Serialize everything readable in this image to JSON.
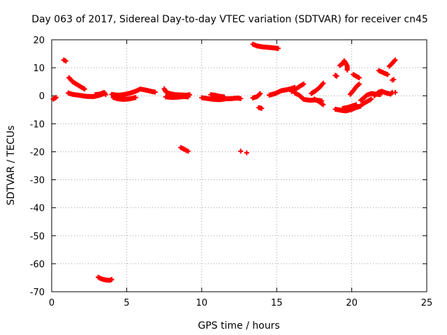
{
  "chart_data": {
    "type": "scatter",
    "title": "Day 063 of 2017, Sidereal Day-to-day VTEC variation (SDTVAR) for receiver cn45",
    "xlabel": "GPS time / hours",
    "ylabel": "SDTVAR / TECUs",
    "xlim": [
      0,
      25
    ],
    "ylim": [
      -70,
      20
    ],
    "xticks": [
      0,
      5,
      10,
      15,
      20,
      25
    ],
    "yticks": [
      -70,
      -60,
      -50,
      -40,
      -30,
      -20,
      -10,
      0,
      10,
      20
    ],
    "grid": true,
    "legend": "none",
    "marker": "plus",
    "color": "#ff0000",
    "tracks": [
      {
        "points": [
          [
            0.1,
            -1.2
          ],
          [
            0.3,
            -0.6
          ]
        ]
      },
      {
        "points": [
          [
            0.8,
            12.8
          ],
          [
            0.95,
            12.4
          ]
        ]
      },
      {
        "points": [
          [
            1.15,
            6.5
          ],
          [
            1.4,
            5.0
          ],
          [
            1.7,
            4.0
          ],
          [
            2.0,
            3.0
          ],
          [
            2.2,
            2.4
          ]
        ]
      },
      {
        "points": [
          [
            1.1,
            1.0
          ],
          [
            1.4,
            0.5
          ],
          [
            1.8,
            0.2
          ],
          [
            2.3,
            -0.2
          ],
          [
            2.8,
            -0.3
          ],
          [
            3.2,
            0.2
          ],
          [
            3.5,
            0.8
          ]
        ]
      },
      {
        "points": [
          [
            2.9,
            0.4
          ],
          [
            3.2,
            0.6
          ],
          [
            3.5,
            1.2
          ],
          [
            3.6,
            0.4
          ]
        ]
      },
      {
        "points": [
          [
            3.1,
            -64.8
          ],
          [
            3.3,
            -65.4
          ],
          [
            3.6,
            -65.8
          ],
          [
            3.9,
            -65.9
          ],
          [
            4.0,
            -65.6
          ]
        ]
      },
      {
        "points": [
          [
            4.1,
            -0.6
          ],
          [
            4.4,
            -1.1
          ],
          [
            4.8,
            -1.3
          ],
          [
            5.2,
            -1.1
          ],
          [
            5.6,
            -0.6
          ]
        ]
      },
      {
        "points": [
          [
            4.0,
            0.5
          ],
          [
            4.4,
            0.2
          ],
          [
            4.8,
            0.4
          ],
          [
            5.2,
            0.9
          ],
          [
            5.6,
            1.6
          ],
          [
            5.9,
            2.4
          ],
          [
            6.3,
            2.0
          ],
          [
            6.7,
            1.5
          ],
          [
            6.9,
            1.3
          ]
        ]
      },
      {
        "points": [
          [
            7.5,
            2.5
          ],
          [
            7.6,
            1.5
          ],
          [
            7.8,
            0.9
          ],
          [
            8.2,
            0.4
          ],
          [
            8.6,
            0.3
          ],
          [
            9.0,
            0.2
          ],
          [
            9.2,
            0.4
          ]
        ]
      },
      {
        "points": [
          [
            7.6,
            -0.4
          ],
          [
            8.0,
            -0.6
          ],
          [
            8.4,
            -0.5
          ],
          [
            8.8,
            -0.3
          ],
          [
            9.1,
            -0.4
          ]
        ]
      },
      {
        "points": [
          [
            8.6,
            -18.5
          ],
          [
            8.8,
            -19.0
          ],
          [
            9.0,
            -19.6
          ],
          [
            9.1,
            -19.8
          ]
        ]
      },
      {
        "points": [
          [
            10.0,
            -0.7
          ],
          [
            10.4,
            -1.0
          ],
          [
            10.8,
            -1.3
          ],
          [
            11.2,
            -1.4
          ],
          [
            11.6,
            -1.1
          ],
          [
            12.0,
            -1.0
          ],
          [
            12.4,
            -0.8
          ],
          [
            12.6,
            -1.0
          ]
        ]
      },
      {
        "points": [
          [
            10.6,
            0.4
          ],
          [
            10.9,
            0.2
          ],
          [
            11.2,
            -0.2
          ],
          [
            11.5,
            -0.4
          ]
        ]
      },
      {
        "points": [
          [
            12.6,
            -19.8
          ]
        ]
      },
      {
        "points": [
          [
            13.0,
            -20.4
          ]
        ]
      },
      {
        "points": [
          [
            13.4,
            18.4
          ],
          [
            13.7,
            17.8
          ],
          [
            14.0,
            17.5
          ],
          [
            14.4,
            17.3
          ],
          [
            14.8,
            17.1
          ],
          [
            15.1,
            16.9
          ]
        ]
      },
      {
        "points": [
          [
            13.4,
            -0.8
          ],
          [
            13.7,
            -0.3
          ],
          [
            13.9,
            0.8
          ]
        ]
      },
      {
        "points": [
          [
            13.8,
            -4.2
          ],
          [
            14.0,
            -4.5
          ]
        ]
      },
      {
        "points": [
          [
            14.5,
            0.2
          ],
          [
            14.9,
            0.8
          ],
          [
            15.3,
            1.8
          ],
          [
            15.7,
            2.2
          ],
          [
            16.0,
            2.6
          ],
          [
            16.2,
            3.0
          ]
        ]
      },
      {
        "points": [
          [
            16.0,
            1.5
          ],
          [
            16.3,
            2.5
          ],
          [
            16.6,
            3.6
          ],
          [
            16.8,
            4.2
          ]
        ]
      },
      {
        "points": [
          [
            16.2,
            1.0
          ],
          [
            16.5,
            0.2
          ],
          [
            16.8,
            -1.3
          ],
          [
            17.2,
            -1.6
          ],
          [
            17.6,
            -1.5
          ],
          [
            18.0,
            -1.8
          ]
        ]
      },
      {
        "points": [
          [
            17.3,
            0.8
          ],
          [
            17.6,
            1.8
          ],
          [
            17.9,
            3.2
          ],
          [
            18.1,
            4.5
          ]
        ]
      },
      {
        "points": [
          [
            17.5,
            -1.2
          ],
          [
            17.8,
            -2.0
          ],
          [
            18.1,
            -3.2
          ]
        ]
      },
      {
        "points": [
          [
            18.9,
            7.3
          ],
          [
            19.0,
            7.0
          ]
        ]
      },
      {
        "points": [
          [
            19.2,
            10.8
          ],
          [
            19.4,
            11.5
          ],
          [
            19.5,
            12.5
          ],
          [
            19.6,
            11.6
          ],
          [
            19.7,
            10.6
          ],
          [
            19.7,
            9.2
          ]
        ]
      },
      {
        "points": [
          [
            18.9,
            -4.8
          ],
          [
            19.3,
            -5.2
          ],
          [
            19.6,
            -5.4
          ],
          [
            20.0,
            -4.9
          ],
          [
            20.3,
            -4.2
          ],
          [
            20.6,
            -3.7
          ]
        ]
      },
      {
        "points": [
          [
            19.4,
            -4.5
          ],
          [
            19.7,
            -4.2
          ],
          [
            20.0,
            -3.7
          ],
          [
            20.3,
            -3.2
          ]
        ]
      },
      {
        "points": [
          [
            19.9,
            0.5
          ],
          [
            20.1,
            1.8
          ],
          [
            20.3,
            3.2
          ],
          [
            20.5,
            4.2
          ]
        ]
      },
      {
        "points": [
          [
            20.1,
            7.6
          ],
          [
            20.3,
            7.0
          ],
          [
            20.5,
            6.4
          ]
        ]
      },
      {
        "points": [
          [
            20.6,
            -1.6
          ],
          [
            20.8,
            -0.8
          ],
          [
            21.0,
            0.2
          ],
          [
            21.3,
            0.8
          ],
          [
            21.6,
            0.6
          ],
          [
            21.9,
            0.4
          ]
        ]
      },
      {
        "points": [
          [
            20.7,
            -3.0
          ],
          [
            20.9,
            -2.4
          ],
          [
            21.1,
            -1.8
          ],
          [
            21.3,
            -1.2
          ]
        ]
      },
      {
        "points": [
          [
            21.5,
            0.0
          ],
          [
            21.8,
            1.3
          ],
          [
            22.0,
            1.6
          ],
          [
            22.3,
            1.0
          ],
          [
            22.6,
            0.6
          ],
          [
            22.7,
            1.2
          ]
        ]
      },
      {
        "points": [
          [
            21.8,
            9.0
          ],
          [
            22.0,
            8.5
          ],
          [
            22.2,
            8.0
          ],
          [
            22.4,
            7.6
          ]
        ]
      },
      {
        "points": [
          [
            22.5,
            10.5
          ],
          [
            22.7,
            11.6
          ],
          [
            22.9,
            12.8
          ]
        ]
      },
      {
        "points": [
          [
            22.7,
            5.6
          ],
          [
            22.8,
            5.8
          ]
        ]
      },
      {
        "points": [
          [
            22.9,
            1.2
          ]
        ]
      }
    ]
  }
}
